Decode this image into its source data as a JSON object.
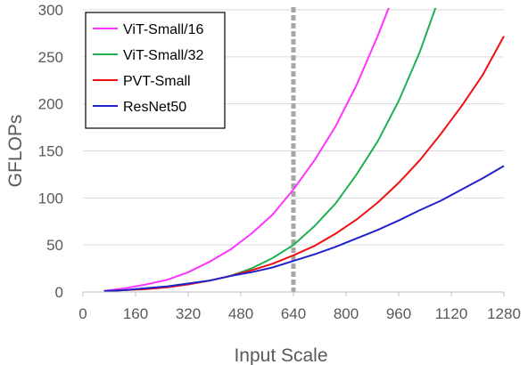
{
  "chart_data": {
    "type": "line",
    "title": "",
    "xlabel": "Input Scale",
    "ylabel": "GFLOPs",
    "xlim": [
      0,
      1280
    ],
    "ylim": [
      0,
      300
    ],
    "x_ticks": [
      0,
      160,
      320,
      480,
      640,
      800,
      960,
      1120,
      1280
    ],
    "y_ticks": [
      0,
      50,
      100,
      150,
      200,
      250,
      300
    ],
    "grid": "horizontal",
    "legend": "top-left",
    "reference_line": {
      "x": 640,
      "color": "#a6a6a6",
      "style": "dotted"
    },
    "series": [
      {
        "name": "ViT-Small/16",
        "color": "#ff33ff",
        "x": [
          64,
          128,
          192,
          256,
          320,
          384,
          448,
          512,
          576,
          640,
          704,
          768,
          832,
          896,
          950
        ],
        "y": [
          1,
          4,
          8,
          13,
          21,
          32,
          45,
          62,
          82,
          109,
          140,
          176,
          220,
          272,
          320
        ]
      },
      {
        "name": "ViT-Small/32",
        "color": "#1fb050",
        "x": [
          64,
          128,
          192,
          256,
          320,
          384,
          448,
          512,
          576,
          640,
          704,
          768,
          832,
          896,
          960,
          1024,
          1080
        ],
        "y": [
          1,
          2,
          4,
          6,
          9,
          12,
          17,
          25,
          36,
          50,
          70,
          94,
          125,
          160,
          203,
          255,
          310
        ]
      },
      {
        "name": "PVT-Small",
        "color": "#ee1111",
        "x": [
          64,
          128,
          192,
          256,
          320,
          384,
          448,
          512,
          576,
          640,
          704,
          768,
          832,
          896,
          960,
          1024,
          1088,
          1152,
          1216,
          1280
        ],
        "y": [
          1,
          2,
          3,
          5,
          8,
          12,
          17,
          23,
          30,
          39,
          49,
          62,
          77,
          95,
          116,
          140,
          168,
          198,
          231,
          272
        ]
      },
      {
        "name": "ResNet50",
        "color": "#2222cc",
        "x": [
          64,
          128,
          192,
          256,
          320,
          384,
          448,
          512,
          576,
          640,
          704,
          768,
          832,
          896,
          960,
          1024,
          1088,
          1152,
          1216,
          1280
        ],
        "y": [
          1,
          2,
          4,
          6,
          9,
          12,
          17,
          21,
          26,
          33,
          40,
          48,
          57,
          66,
          76,
          87,
          97,
          109,
          121,
          134
        ]
      }
    ]
  }
}
